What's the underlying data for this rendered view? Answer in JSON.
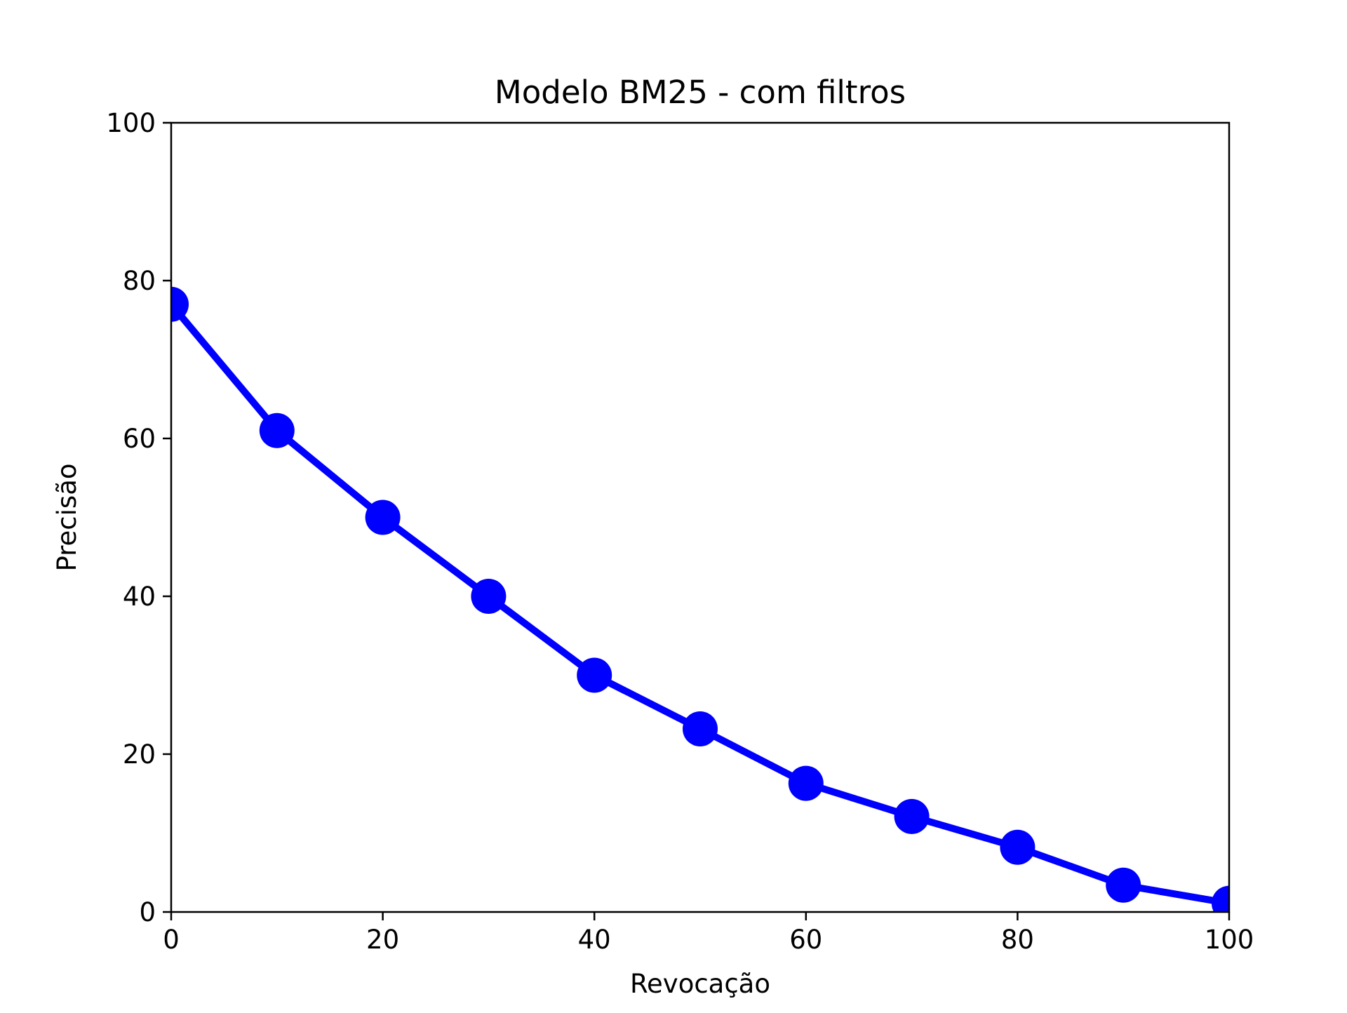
{
  "chart_data": {
    "type": "line",
    "title": "Modelo BM25 - com filtros",
    "xlabel": "Revocação",
    "ylabel": "Precisão",
    "xlim": [
      0,
      100
    ],
    "ylim": [
      0,
      100
    ],
    "xticks": [
      0,
      20,
      40,
      60,
      80,
      100
    ],
    "yticks": [
      0,
      20,
      40,
      60,
      80,
      100
    ],
    "grid": false,
    "series": [
      {
        "color": "#0000ff",
        "marker": "circle",
        "x": [
          0,
          10,
          20,
          30,
          40,
          50,
          60,
          70,
          80,
          90,
          100
        ],
        "y": [
          77,
          61,
          50,
          40,
          30,
          23.2,
          16.3,
          12.1,
          8.2,
          3.4,
          1.1
        ]
      }
    ]
  }
}
